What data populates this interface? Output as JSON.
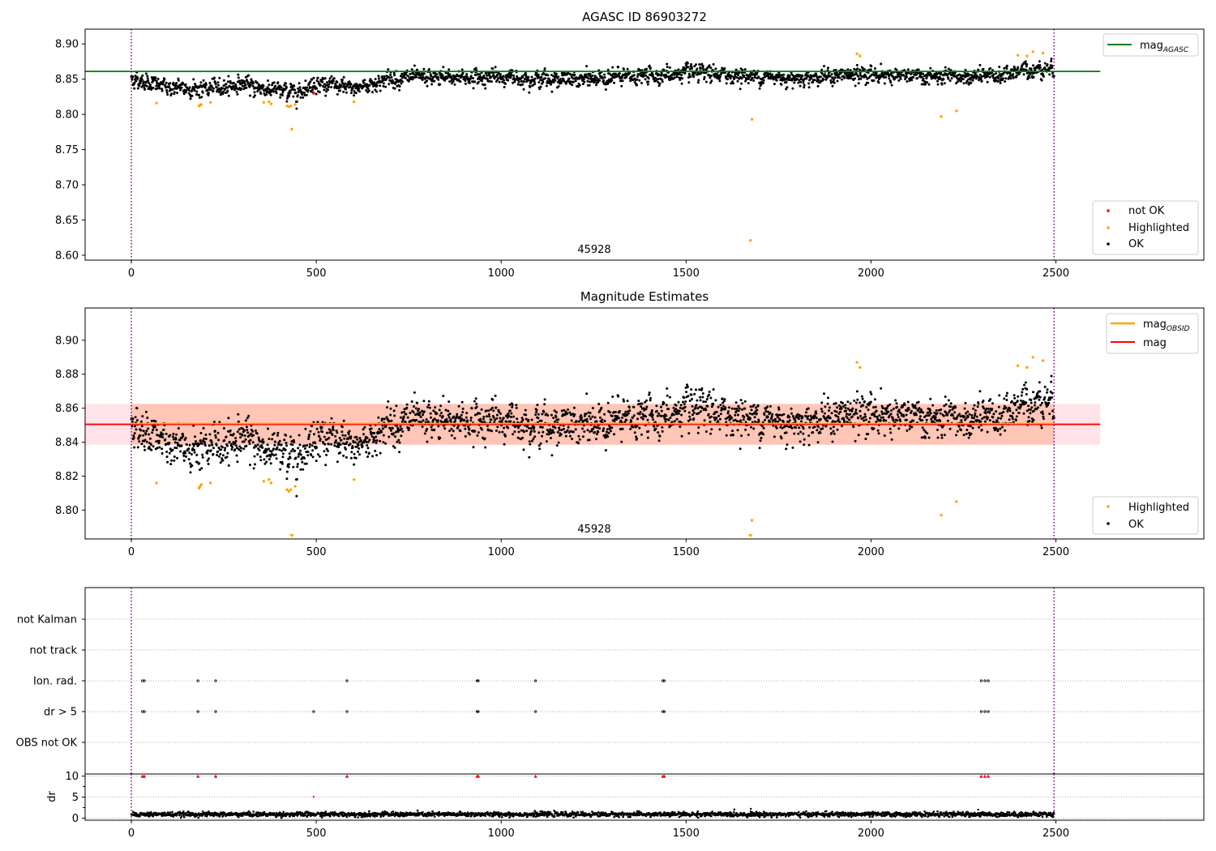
{
  "colors": {
    "ok": "#000000",
    "not_ok": "#ff0000",
    "highlighted": "#ffa500",
    "mag_agasc_line": "#008000",
    "mag_obsid_line": "#ffa500",
    "mag_line": "#ff0000",
    "band_outer": "#ffc0cb",
    "band_inner": "#ffa07a",
    "obs_boundary": "#800080",
    "grid": "#b0b0b0"
  },
  "chart_data": [
    {
      "id": "agasc",
      "type": "scatter",
      "title": "AGASC ID 86903272",
      "xlim": [
        -125,
        2900
      ],
      "ylim": [
        8.593,
        8.921
      ],
      "xticks": [
        "0",
        "500",
        "1000",
        "1500",
        "2000",
        "2500"
      ],
      "yticks": [
        "8.60",
        "8.65",
        "8.70",
        "8.75",
        "8.80",
        "8.85",
        "8.90"
      ],
      "obsid_label": "45928",
      "obs_boundaries": [
        0,
        2495
      ],
      "legend_lines": [
        {
          "name": "mag",
          "sub": "AGASC"
        }
      ],
      "legend_points": [
        "not OK",
        "Highlighted",
        "OK"
      ],
      "mag_agasc": 8.861,
      "mag_agasc_xrange": [
        -125,
        2620
      ],
      "series_ok": {
        "name": "OK",
        "n": 2480,
        "x": [
          0,
          2495
        ],
        "trend_x": [
          0,
          100,
          200,
          300,
          400,
          450,
          500,
          600,
          700,
          1000,
          1200,
          1500,
          1800,
          2000,
          2200,
          2350,
          2400,
          2500
        ],
        "trend_y": [
          8.851,
          8.838,
          8.836,
          8.843,
          8.833,
          8.832,
          8.845,
          8.836,
          8.851,
          8.853,
          8.849,
          8.858,
          8.852,
          8.857,
          8.852,
          8.854,
          8.862,
          8.866
        ],
        "scatter": 0.011
      },
      "series_not_ok": {
        "name": "not OK",
        "points": [
          [
            493,
            8.83
          ]
        ]
      },
      "series_highlighted": {
        "name": "Highlighted",
        "points": [
          [
            68,
            8.816
          ],
          [
            183,
            8.812
          ],
          [
            186,
            8.813
          ],
          [
            189,
            8.814
          ],
          [
            214,
            8.817
          ],
          [
            358,
            8.817
          ],
          [
            372,
            8.818
          ],
          [
            378,
            8.815
          ],
          [
            421,
            8.812
          ],
          [
            426,
            8.811
          ],
          [
            431,
            8.812
          ],
          [
            434,
            8.779
          ],
          [
            443,
            8.814
          ],
          [
            602,
            8.818
          ],
          [
            1674,
            8.621
          ],
          [
            1678,
            8.793
          ],
          [
            1962,
            8.886
          ],
          [
            1970,
            8.883
          ],
          [
            2190,
            8.797
          ],
          [
            2231,
            8.805
          ],
          [
            2397,
            8.884
          ],
          [
            2422,
            8.883
          ],
          [
            2438,
            8.889
          ],
          [
            2465,
            8.887
          ]
        ]
      }
    },
    {
      "id": "estimates",
      "type": "scatter",
      "title": "Magnitude Estimates",
      "xlim": [
        -125,
        2900
      ],
      "ylim": [
        8.783,
        8.919
      ],
      "xticks": [
        "0",
        "500",
        "1000",
        "1500",
        "2000",
        "2500"
      ],
      "yticks": [
        "8.80",
        "8.82",
        "8.84",
        "8.86",
        "8.88",
        "8.90"
      ],
      "obsid_label": "45928",
      "obs_boundaries": [
        0,
        2495
      ],
      "legend_lines": [
        {
          "name": "mag",
          "sub": "OBSID"
        },
        {
          "name": "mag",
          "sub": ""
        }
      ],
      "legend_points": [
        "Highlighted",
        "OK"
      ],
      "mag": 8.8505,
      "mag_band": [
        8.8385,
        8.8625
      ],
      "mag_xrange": [
        -125,
        2620
      ],
      "mag_obsid": 8.851,
      "mag_obsid_xrange": [
        0,
        2495
      ],
      "series_ok": {
        "name": "OK",
        "n": 2480,
        "x": [
          0,
          2495
        ],
        "trend_x": [
          0,
          100,
          200,
          300,
          400,
          450,
          500,
          600,
          700,
          1000,
          1200,
          1500,
          1800,
          2000,
          2200,
          2350,
          2400,
          2500
        ],
        "trend_y": [
          8.851,
          8.838,
          8.836,
          8.843,
          8.833,
          8.832,
          8.845,
          8.836,
          8.851,
          8.853,
          8.849,
          8.858,
          8.852,
          8.857,
          8.852,
          8.854,
          8.862,
          8.866
        ],
        "scatter": 0.011
      },
      "series_highlighted": {
        "name": "Highlighted",
        "points": [
          [
            68,
            8.816
          ],
          [
            183,
            8.813
          ],
          [
            186,
            8.814
          ],
          [
            189,
            8.815
          ],
          [
            214,
            8.816
          ],
          [
            358,
            8.817
          ],
          [
            372,
            8.818
          ],
          [
            378,
            8.816
          ],
          [
            421,
            8.812
          ],
          [
            426,
            8.811
          ],
          [
            431,
            8.812
          ],
          [
            443,
            8.814
          ],
          [
            602,
            8.818
          ],
          [
            1678,
            8.794
          ],
          [
            1962,
            8.887
          ],
          [
            1970,
            8.884
          ],
          [
            2190,
            8.797
          ],
          [
            2231,
            8.805
          ],
          [
            2397,
            8.885
          ],
          [
            2422,
            8.884
          ],
          [
            2438,
            8.89
          ],
          [
            2465,
            8.888
          ]
        ],
        "below_range_x": [
          434,
          1674
        ]
      }
    },
    {
      "id": "flags",
      "type": "scatter",
      "xlim": [
        -125,
        2900
      ],
      "categories": [
        "not Kalman",
        "not track",
        "Ion. rad.",
        "dr > 5",
        "OBS not OK"
      ],
      "obs_boundaries": [
        0,
        2495
      ],
      "flag_points": {
        "Ion. rad.": [
          30,
          35,
          180,
          228,
          583,
          935,
          938,
          1093,
          1437,
          1441,
          2298,
          2308,
          2317
        ],
        "dr > 5": [
          30,
          35,
          180,
          228,
          493,
          583,
          935,
          938,
          1093,
          1437,
          1441,
          2298,
          2308,
          2317
        ]
      }
    },
    {
      "id": "dr",
      "type": "scatter",
      "ylabel": "dr",
      "xlim": [
        -125,
        2900
      ],
      "ylim": [
        -0.5,
        10.5
      ],
      "xticks": [
        "0",
        "500",
        "1000",
        "1500",
        "2000",
        "2500"
      ],
      "yticks": [
        "0",
        "5",
        "10"
      ],
      "obs_boundaries": [
        0,
        2495
      ],
      "typical": 0.9,
      "spread": 0.45,
      "capped_at_10": [
        30,
        35,
        180,
        228,
        583,
        935,
        938,
        1093,
        1437,
        1441,
        2298,
        2308,
        2317
      ],
      "outliers": [
        [
          493,
          5.1
        ],
        [
          1675,
          2.2
        ],
        [
          2290,
          2.0
        ]
      ]
    }
  ]
}
